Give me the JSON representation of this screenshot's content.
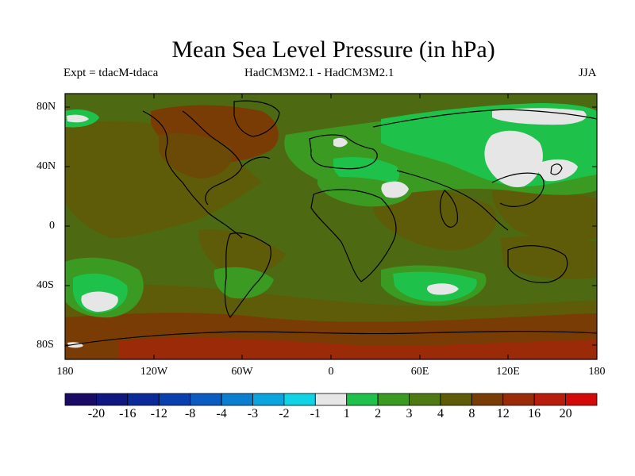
{
  "title": "Mean Sea Level Pressure (in hPa)",
  "subtitle_left": "Expt = tdacM-tdaca",
  "subtitle_center": "HadCM3M2.1 - HadCM3M2.1",
  "subtitle_right": "JJA",
  "lat_labels": [
    "80N",
    "40N",
    "0",
    "40S",
    "80S"
  ],
  "lon_labels": [
    "180",
    "120W",
    "60W",
    "0",
    "60E",
    "120E",
    "180"
  ],
  "colorbar": {
    "labels": [
      "-20",
      "-16",
      "-12",
      "-8",
      "-4",
      "-3",
      "-2",
      "-1",
      "1",
      "2",
      "3",
      "4",
      "8",
      "12",
      "16",
      "20"
    ],
    "colors": [
      "#1a0a66",
      "#0f1680",
      "#0b2a9a",
      "#0a40ad",
      "#0a5cc0",
      "#0a7fd0",
      "#0aa4de",
      "#10d4e6",
      "#e6e6e6",
      "#1ec24a",
      "#3a9a22",
      "#4d7a12",
      "#5e5c08",
      "#7a3c05",
      "#9a2a08",
      "#b81c0a",
      "#d40a0a"
    ]
  },
  "colors": {
    "background_field": "#4d6a12",
    "positive_small": "#5e5c08",
    "positive_medium": "#7a3c05",
    "green_1_2": "#1ec24a",
    "green_2_3": "#3a9a22",
    "near_zero": "#e6e6e6",
    "coastline": "#000000"
  }
}
